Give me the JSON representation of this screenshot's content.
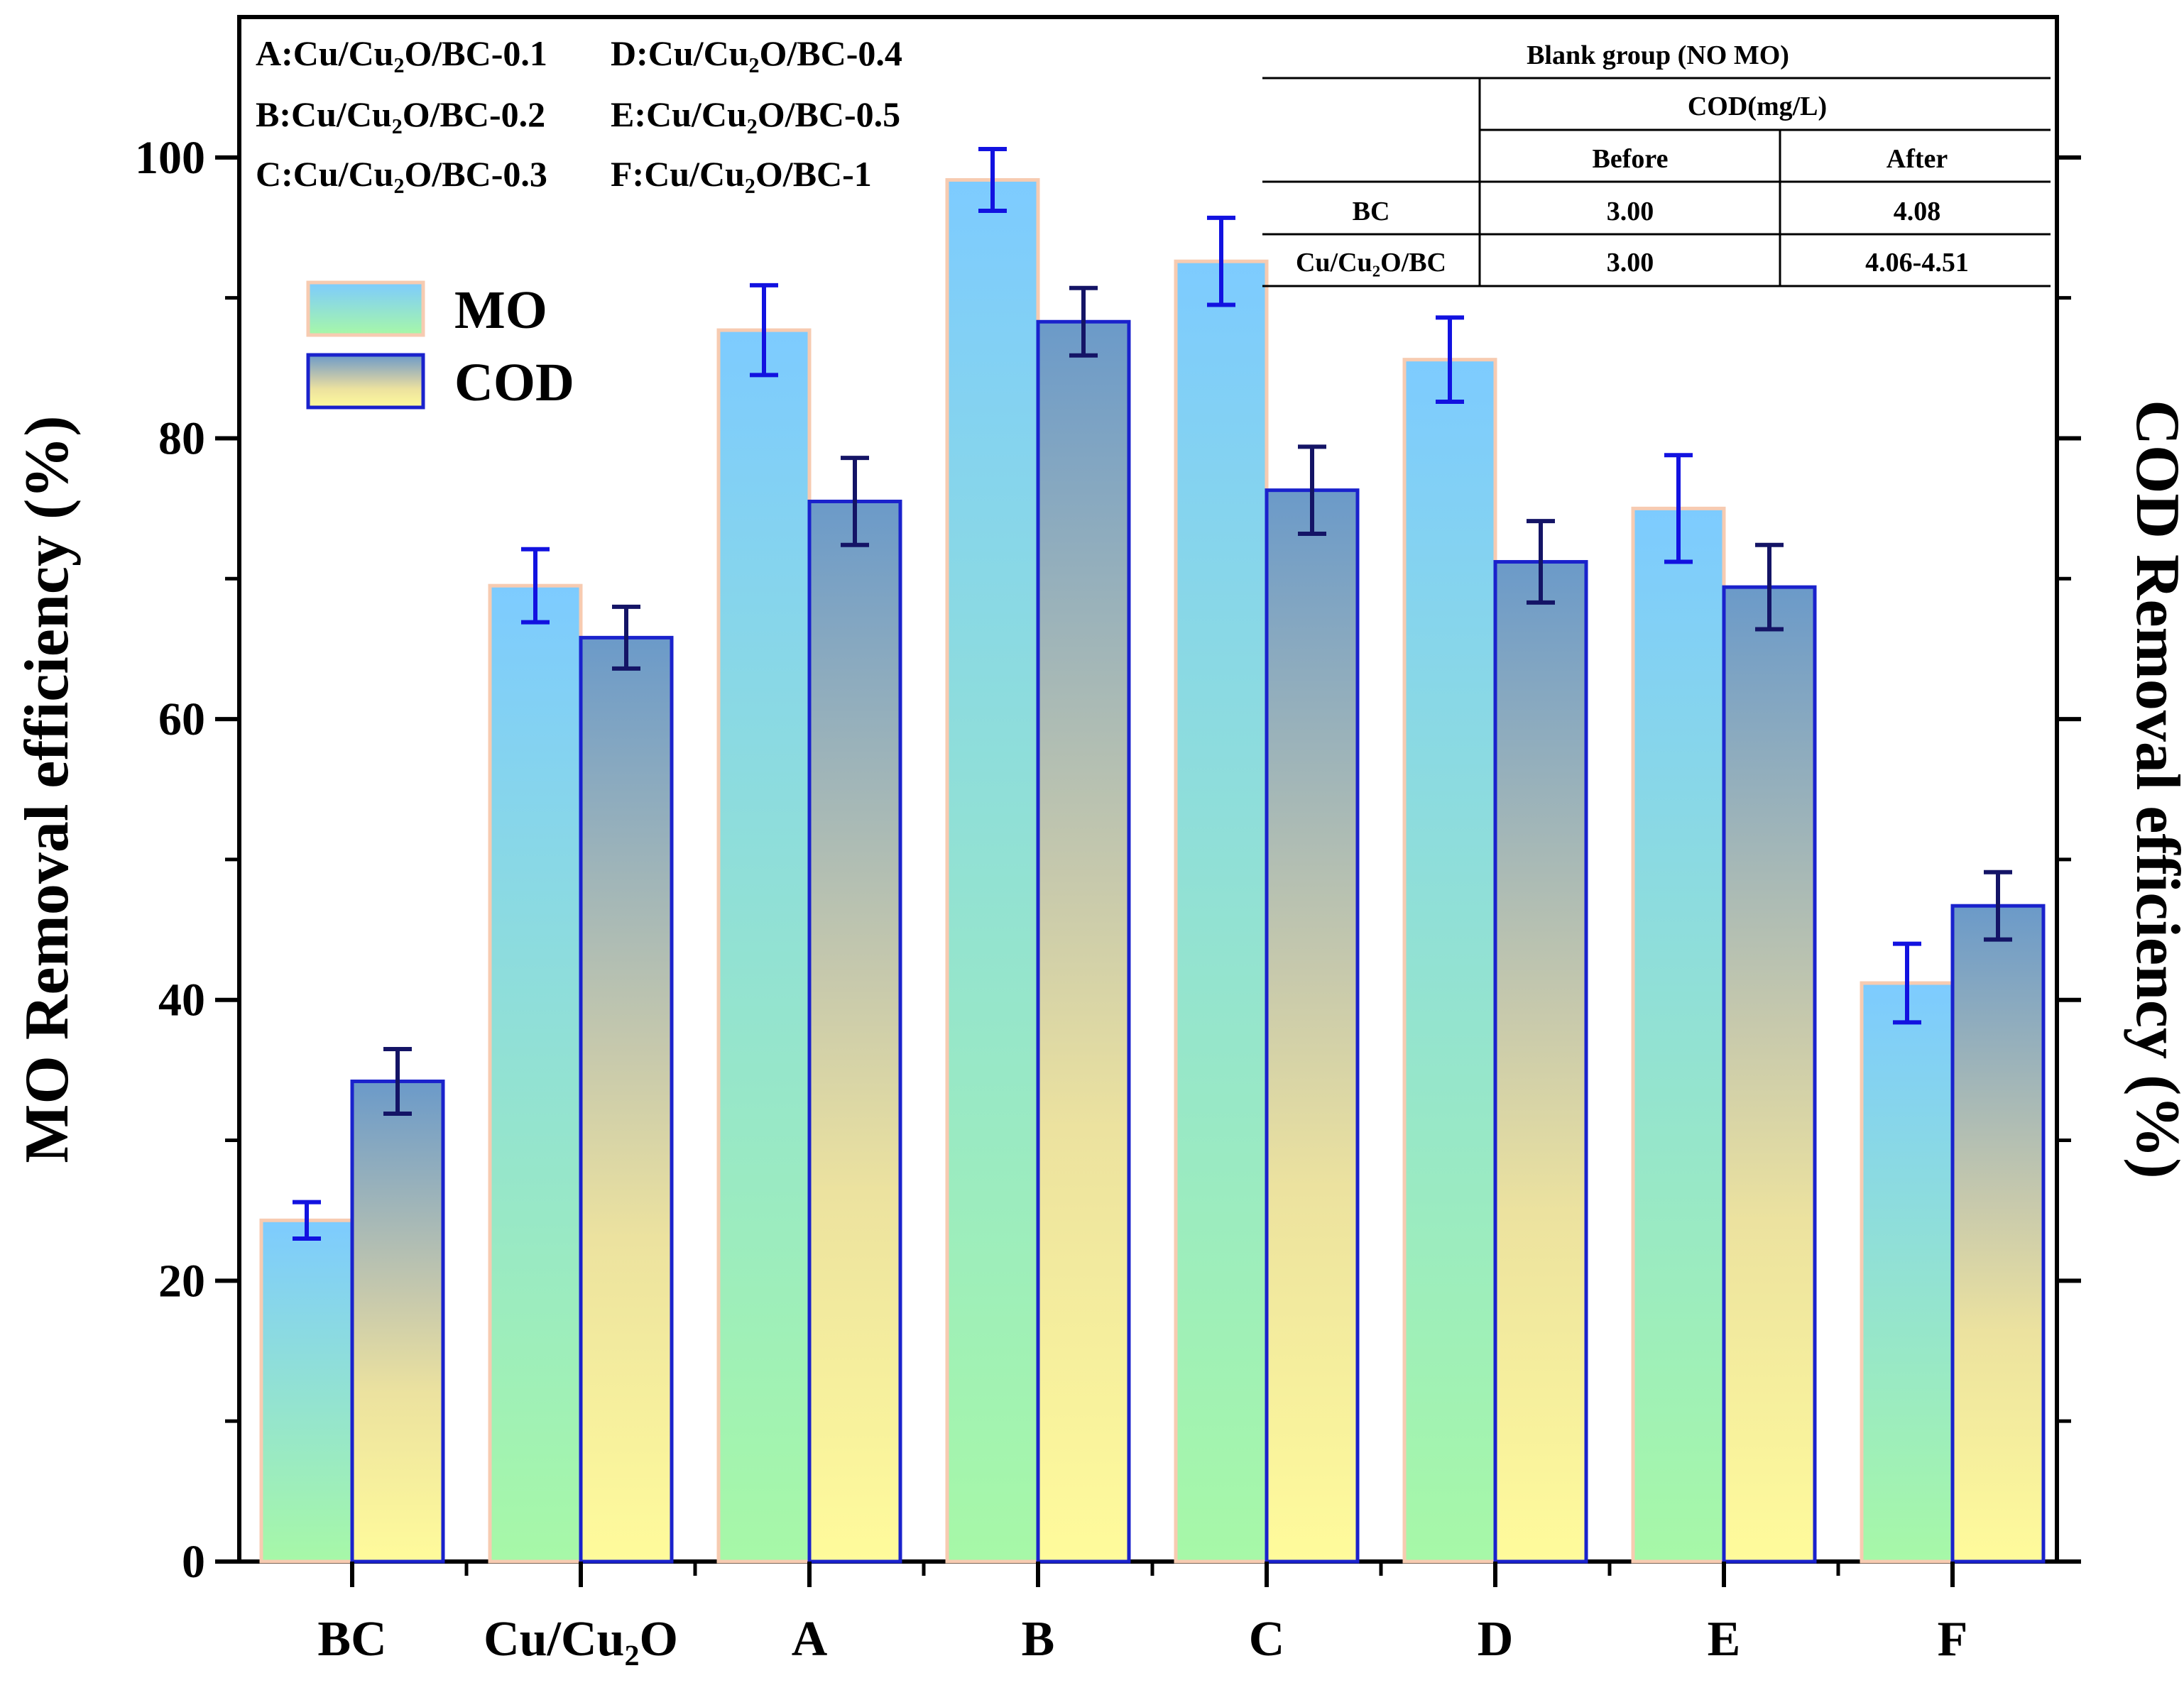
{
  "chart_data": {
    "type": "bar",
    "categories": [
      "BC",
      "Cu/Cu₂O",
      "A",
      "B",
      "C",
      "D",
      "E",
      "F"
    ],
    "series": [
      {
        "name": "MO",
        "values": [
          24.3,
          69.5,
          87.7,
          98.4,
          92.6,
          85.6,
          75.0,
          41.2
        ],
        "errors": [
          1.3,
          2.6,
          3.2,
          2.2,
          3.1,
          3.0,
          3.8,
          2.8
        ]
      },
      {
        "name": "COD",
        "values": [
          34.2,
          65.8,
          75.5,
          88.3,
          76.3,
          71.2,
          69.4,
          46.7
        ],
        "errors": [
          2.3,
          2.2,
          3.1,
          2.4,
          3.1,
          2.9,
          3.0,
          2.4
        ]
      }
    ],
    "ylabel_left": "MO Removal efficiency (%)",
    "ylabel_right": "COD Removal efficiency (%)",
    "yticks": [
      0,
      20,
      40,
      60,
      80,
      100
    ],
    "ylim": [
      0,
      110
    ],
    "legend": {
      "position": "top-left",
      "entries": [
        "MO",
        "COD"
      ]
    },
    "sample_codes": [
      {
        "code": "A",
        "name": "Cu/Cu₂O/BC-0.1"
      },
      {
        "code": "B",
        "name": "Cu/Cu₂O/BC-0.2"
      },
      {
        "code": "C",
        "name": "Cu/Cu₂O/BC-0.3"
      },
      {
        "code": "D",
        "name": "Cu/Cu₂O/BC-0.4"
      },
      {
        "code": "E",
        "name": "Cu/Cu₂O/BC-0.5"
      },
      {
        "code": "F",
        "name": "Cu/Cu₂O/BC-1"
      }
    ],
    "inset_table": {
      "title": "Blank group (NO MO)",
      "group_header": "COD(mg/L)",
      "columns": [
        "Before",
        "After"
      ],
      "rows": [
        {
          "label": "BC",
          "before": "3.00",
          "after": "4.08"
        },
        {
          "label": "Cu/Cu₂O/BC",
          "before": "3.00",
          "after": "4.06-4.51"
        }
      ]
    },
    "colors": {
      "mo_top": "#7dcbff",
      "mo_bottom": "#a7f8a7",
      "mo_edge": "#f7cbb1",
      "cod_top": "#6b9ac9",
      "cod_mid": "#e7dea0",
      "cod_bottom": "#fffb9b",
      "cod_edge": "#1a22cc",
      "error_mo": "#1212e0",
      "error_cod": "#141466"
    }
  }
}
